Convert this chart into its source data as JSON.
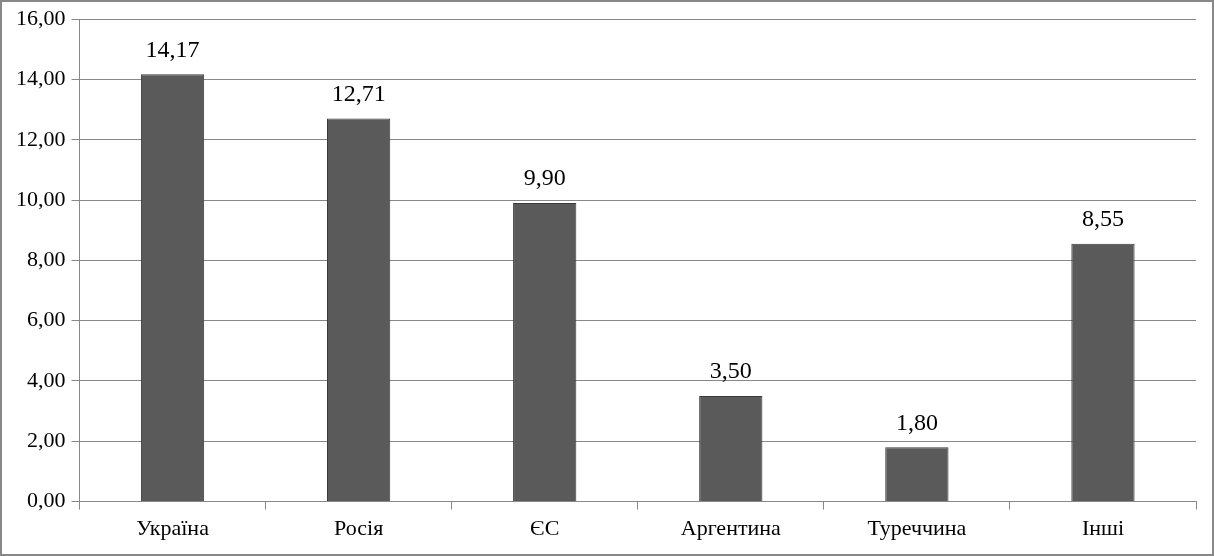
{
  "chart_data": {
    "type": "bar",
    "categories": [
      "Україна",
      "Росія",
      "ЄС",
      "Аргентина",
      "Туреччина",
      "Інші"
    ],
    "values": [
      14.17,
      12.71,
      9.9,
      3.5,
      1.8,
      8.55
    ],
    "value_labels": [
      "14,17",
      "12,71",
      "9,90",
      "3,50",
      "1,80",
      "8,55"
    ],
    "color": "#5a5a5a",
    "ylim": [
      0,
      16
    ],
    "yticks": [
      {
        "value": 0,
        "label": "0,00"
      },
      {
        "value": 2,
        "label": "2,00"
      },
      {
        "value": 4,
        "label": "4,00"
      },
      {
        "value": 6,
        "label": "6,00"
      },
      {
        "value": 8,
        "label": "8,00"
      },
      {
        "value": 10,
        "label": "10,00"
      },
      {
        "value": 12,
        "label": "12,00"
      },
      {
        "value": 14,
        "label": "14,00"
      },
      {
        "value": 16,
        "label": "16,00"
      }
    ],
    "grid": "y",
    "legend": false
  }
}
